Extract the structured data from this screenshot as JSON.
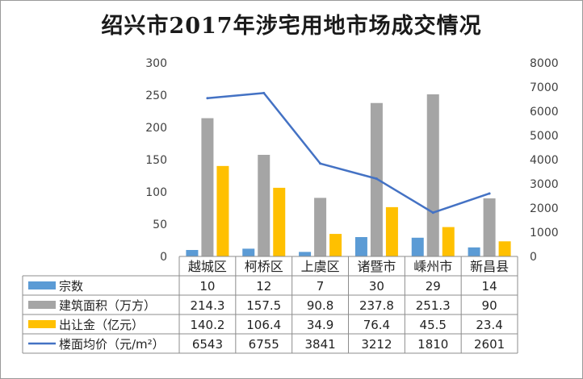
{
  "chart_data": {
    "type": "bar",
    "title": "绍兴市2017年涉宅用地市场成交情况",
    "categories": [
      "越城区",
      "柯桥区",
      "上虞区",
      "诸暨市",
      "嵊州市",
      "新昌县"
    ],
    "series": [
      {
        "name": "宗数",
        "kind": "bar",
        "axis": "left",
        "color": "#5b9bd5",
        "values": [
          10,
          12,
          7,
          30,
          29,
          14
        ],
        "labels": [
          "10",
          "12",
          "7",
          "30",
          "29",
          "14"
        ]
      },
      {
        "name": "建筑面积（万方）",
        "kind": "bar",
        "axis": "left",
        "color": "#a5a5a5",
        "values": [
          214.3,
          157.5,
          90.8,
          237.8,
          251.3,
          90
        ],
        "labels": [
          "214.3",
          "157.5",
          "90.8",
          "237.8",
          "251.3",
          "90"
        ]
      },
      {
        "name": "出让金（亿元）",
        "kind": "bar",
        "axis": "left",
        "color": "#ffc000",
        "values": [
          140.2,
          106.4,
          34.9,
          76.4,
          45.5,
          23.4
        ],
        "labels": [
          "140.2",
          "106.4",
          "34.9",
          "76.4",
          "45.5",
          "23.4"
        ]
      },
      {
        "name": "楼面均价（元/m²）",
        "kind": "line",
        "axis": "right",
        "color": "#4472c4",
        "values": [
          6543,
          6755,
          3841,
          3212,
          1810,
          2601
        ],
        "labels": [
          "6543",
          "6755",
          "3841",
          "3212",
          "1810",
          "2601"
        ]
      }
    ],
    "y_left": {
      "min": 0,
      "max": 300,
      "ticks": [
        "0",
        "50",
        "100",
        "150",
        "200",
        "250",
        "300"
      ]
    },
    "y_right": {
      "min": 0,
      "max": 8000,
      "ticks": [
        "0",
        "1000",
        "2000",
        "3000",
        "4000",
        "5000",
        "6000",
        "7000",
        "8000"
      ]
    },
    "grid": false,
    "legend": "data-table"
  }
}
